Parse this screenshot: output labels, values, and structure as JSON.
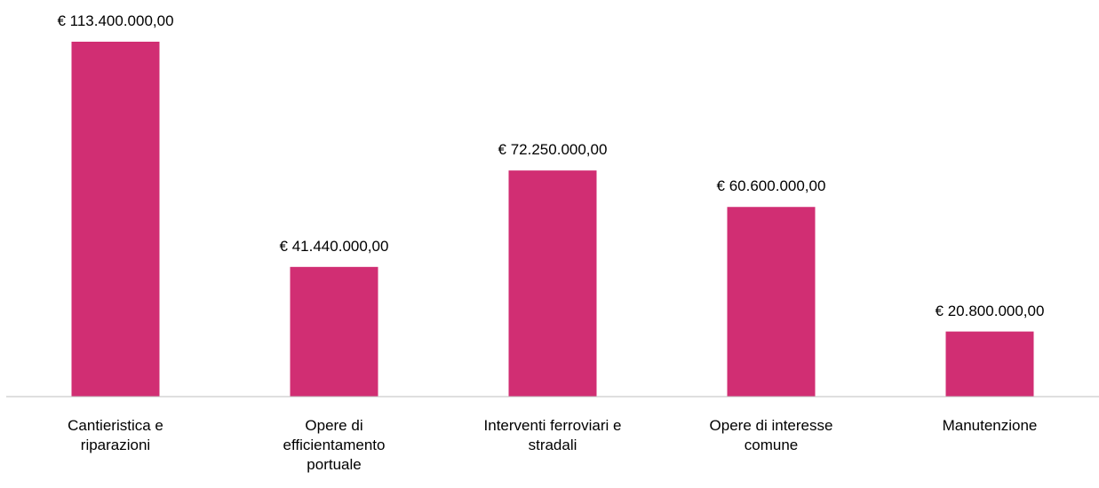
{
  "chart_data": {
    "type": "bar",
    "categories": [
      "Cantieristica e\nriparazioni",
      "Opere di\nefficientamento\nportuale",
      "Interventi ferroviari e\nstradali",
      "Opere di interesse\ncomune",
      "Manutenzione"
    ],
    "values": [
      113400000,
      41440000,
      72250000,
      60600000,
      20800000
    ],
    "value_labels": [
      "€ 113.400.000,00",
      "€ 41.440.000,00",
      "€ 72.250.000,00",
      "€ 60.600.000,00",
      "€ 20.800.000,00"
    ],
    "color": "#d12e73"
  }
}
